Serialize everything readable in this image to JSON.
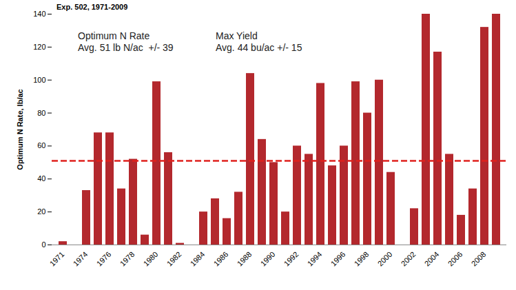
{
  "chart_data": {
    "type": "bar",
    "title": "Exp. 502, 1971-2009",
    "y_label": "Optimum N Rate, lb/ac",
    "annotations": [
      "Optimum N Rate\nAvg. 51 lb N/ac  +/- 39",
      "Max Yield\nAvg. 44 bu/ac +/- 15"
    ],
    "categories": [
      "1971",
      null,
      "1974",
      null,
      "1976",
      null,
      "1978",
      null,
      "1980",
      null,
      "1982",
      null,
      "1984",
      null,
      "1986",
      null,
      "1988",
      null,
      "1990",
      null,
      "1992",
      null,
      "1994",
      null,
      "1996",
      null,
      "1998",
      null,
      "2000",
      null,
      "2002",
      null,
      "2004",
      null,
      "2006",
      null,
      "2008",
      null
    ],
    "values": [
      2,
      0,
      33,
      68,
      68,
      34,
      52,
      6,
      99,
      56,
      1,
      0,
      20,
      28,
      16,
      32,
      104,
      64,
      50,
      20,
      60,
      55,
      98,
      48,
      60,
      99,
      80,
      100,
      44,
      0,
      22,
      140,
      117,
      55,
      18,
      34,
      132,
      140
    ],
    "color": "#b3282d",
    "reference_line": {
      "value": 51,
      "color": "#e0201c",
      "line_style": "dashed"
    },
    "ylim": [
      0,
      140
    ],
    "yticks": [
      0,
      20,
      40,
      60,
      80,
      100,
      120,
      140
    ],
    "grid": false
  }
}
